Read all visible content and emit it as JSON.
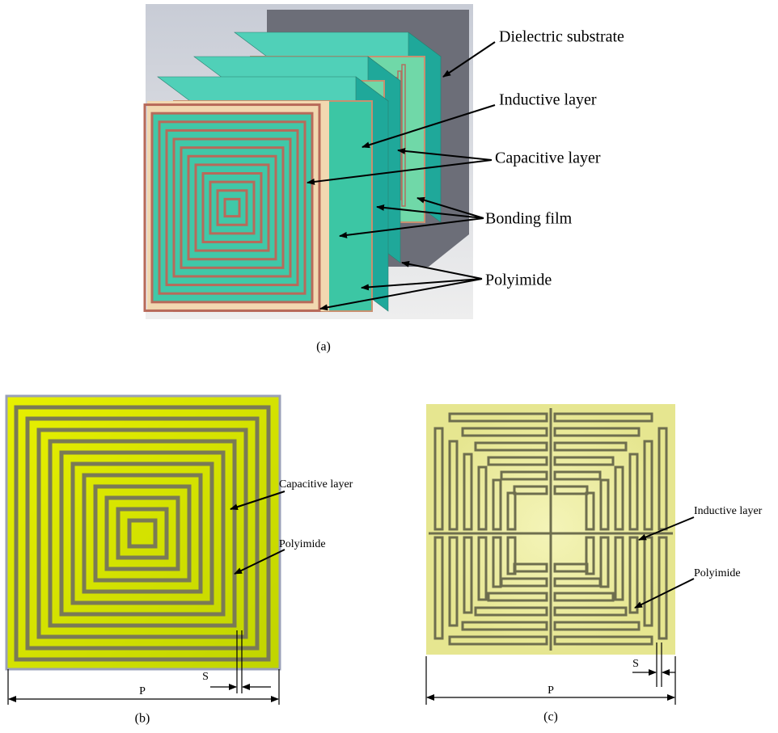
{
  "panel_a": {
    "labels": [
      "Dielectric substrate",
      "Inductive layer",
      "Capacitive layer",
      "Bonding film",
      "Polyimide"
    ],
    "caption": "(a)"
  },
  "panel_b": {
    "labels": [
      "Capacitive layer",
      "Polyimide"
    ],
    "s": "S",
    "p": "P",
    "caption": "(b)"
  },
  "panel_c": {
    "labels": [
      "Inductive layer",
      "Polyimide"
    ],
    "s": "S",
    "p": "P",
    "caption": "(c)"
  }
}
